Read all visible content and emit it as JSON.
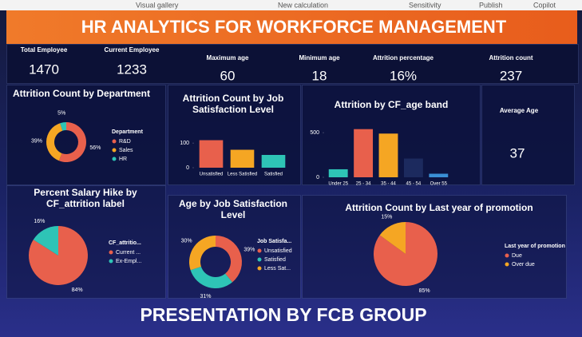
{
  "toolbar": [
    "Visual gallery",
    "New calculation",
    "Sensitivity",
    "Publish",
    "Copilot"
  ],
  "header": {
    "title": "HR ANALYTICS FOR WORKFORCE MANAGEMENT"
  },
  "kpis": [
    {
      "label": "Total Employee",
      "value": 1470
    },
    {
      "label": "Current Employee",
      "value": 1233
    },
    {
      "label": "Maximum age",
      "value": 60
    },
    {
      "label": "Minimum age",
      "value": 18
    },
    {
      "label": "Attrition percentage",
      "value": "16%"
    },
    {
      "label": "Attrition count",
      "value": 237
    }
  ],
  "average_age": {
    "label": "Average Age",
    "value": 37
  },
  "footer": "PRESENTATION BY FCB GROUP",
  "chart_data": [
    {
      "type": "donut",
      "title": "Attrition Count by Department",
      "legend_title": "Department",
      "categories": [
        "R&D",
        "Sales",
        "HR"
      ],
      "values": [
        56,
        39,
        5
      ],
      "value_labels": [
        "56%",
        "39%",
        "5%"
      ],
      "colors": [
        "#e8604c",
        "#f5a623",
        "#2ec4b6"
      ]
    },
    {
      "type": "bar",
      "title": "Attrition Count by Job Satisfaction Level",
      "categories": [
        "Unsatisfied",
        "Less Satisfied",
        "Satisfied"
      ],
      "values": [
        112,
        73,
        52
      ],
      "colors": [
        "#e8604c",
        "#f5a623",
        "#2ec4b6"
      ],
      "ylim": [
        0,
        130
      ],
      "yticks": [
        0,
        100
      ]
    },
    {
      "type": "bar",
      "title": "Attrition by CF_age band",
      "categories": [
        "Under 25",
        "25 - 34",
        "35 - 44",
        "45 - 54",
        "Over 55"
      ],
      "values": [
        90,
        540,
        490,
        210,
        40
      ],
      "colors": [
        "#2ec4b6",
        "#e8604c",
        "#f5a623",
        "#1c2a5e",
        "#3a8fd6"
      ],
      "ylim": [
        0,
        600
      ],
      "yticks": [
        0,
        500
      ]
    },
    {
      "type": "pie",
      "title": "Percent Salary Hike by CF_attrition label",
      "legend_title": "CF_attritio...",
      "categories": [
        "Current ...",
        "Ex-Empl..."
      ],
      "values": [
        84,
        16
      ],
      "value_labels": [
        "84%",
        "16%"
      ],
      "colors": [
        "#e8604c",
        "#2ec4b6"
      ]
    },
    {
      "type": "donut",
      "title": "Age by Job Satisfaction Level",
      "legend_title": "Job Satisfa...",
      "categories": [
        "Unsatisfied",
        "Satisfied",
        "Less Sat..."
      ],
      "values": [
        39,
        31,
        30
      ],
      "value_labels": [
        "39%",
        "31%",
        "30%"
      ],
      "colors": [
        "#e8604c",
        "#2ec4b6",
        "#f5a623"
      ]
    },
    {
      "type": "pie",
      "title": "Attrition Count by Last year of promotion",
      "legend_title": "Last year of promotion",
      "categories": [
        "Due",
        "Over due"
      ],
      "values": [
        85,
        15
      ],
      "value_labels": [
        "85%",
        "15%"
      ],
      "colors": [
        "#e8604c",
        "#f5a623"
      ]
    }
  ]
}
